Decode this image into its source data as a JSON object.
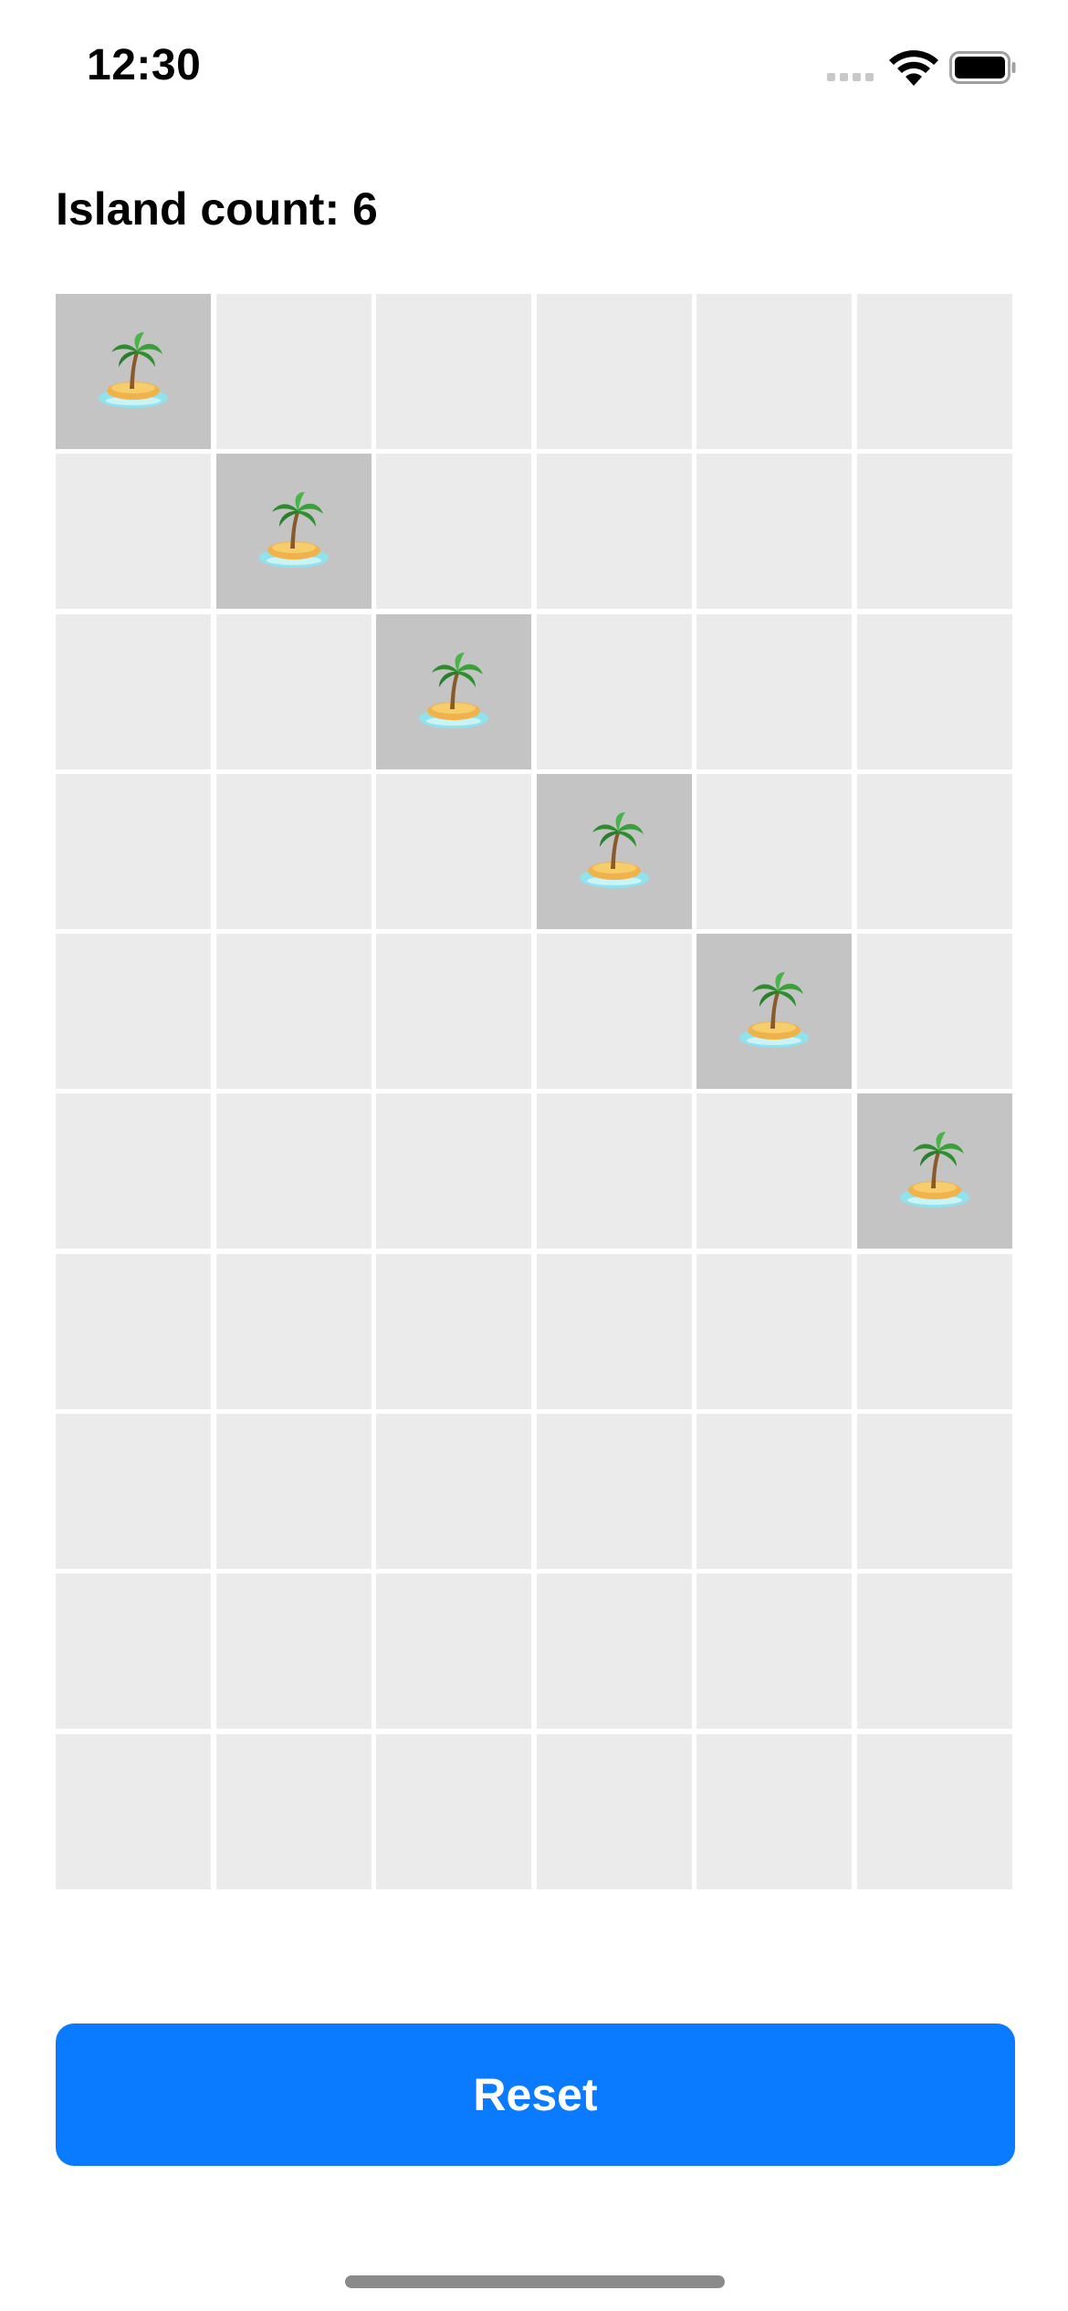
{
  "status_bar": {
    "time": "12:30"
  },
  "header": {
    "island_count_text": "Island count: 6"
  },
  "grid": {
    "rows": 10,
    "columns": 6,
    "cells": [
      [
        "island",
        "water",
        "water",
        "water",
        "water",
        "water"
      ],
      [
        "water",
        "island",
        "water",
        "water",
        "water",
        "water"
      ],
      [
        "water",
        "water",
        "island",
        "water",
        "water",
        "water"
      ],
      [
        "water",
        "water",
        "water",
        "island",
        "water",
        "water"
      ],
      [
        "water",
        "water",
        "water",
        "water",
        "island",
        "water"
      ],
      [
        "water",
        "water",
        "water",
        "water",
        "water",
        "island"
      ],
      [
        "water",
        "water",
        "water",
        "water",
        "water",
        "water"
      ],
      [
        "water",
        "water",
        "water",
        "water",
        "water",
        "water"
      ],
      [
        "water",
        "water",
        "water",
        "water",
        "water",
        "water"
      ],
      [
        "water",
        "water",
        "water",
        "water",
        "water",
        "water"
      ]
    ],
    "island_icon": "desert-island-icon",
    "colors": {
      "water": "#ebebeb",
      "island": "#c4c4c4"
    }
  },
  "reset_button": {
    "label": "Reset",
    "color": "#0a7aff"
  }
}
